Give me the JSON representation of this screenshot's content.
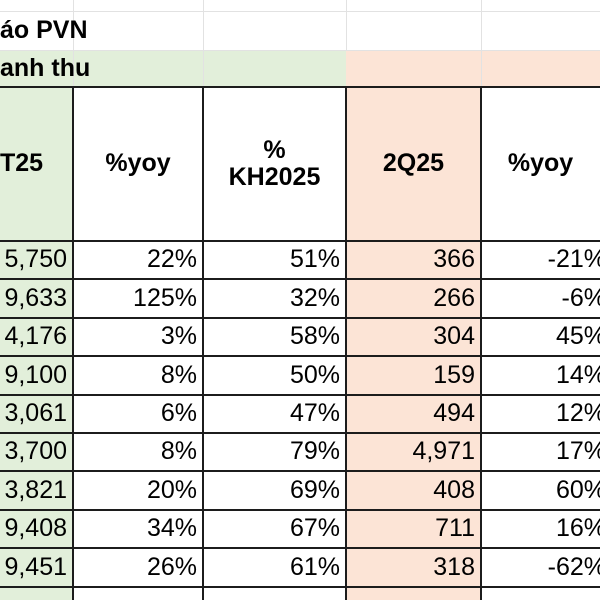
{
  "sheet": {
    "title": "áo PVN",
    "section_label": "anh thu",
    "headers": [
      "T25",
      "%yoy",
      "%\nKH2025",
      "2Q25",
      "%yoy"
    ],
    "rows": [
      [
        "5,750",
        "22%",
        "51%",
        "366",
        "-21%"
      ],
      [
        "9,633",
        "125%",
        "32%",
        "266",
        "-6%"
      ],
      [
        "4,176",
        "3%",
        "58%",
        "304",
        "45%"
      ],
      [
        "9,100",
        "8%",
        "50%",
        "159",
        "14%"
      ],
      [
        "3,061",
        "6%",
        "47%",
        "494",
        "12%"
      ],
      [
        "3,700",
        "8%",
        "79%",
        "4,971",
        "17%"
      ],
      [
        "3,821",
        "20%",
        "69%",
        "408",
        "60%"
      ],
      [
        "9,408",
        "34%",
        "67%",
        "711",
        "16%"
      ],
      [
        "9,451",
        "26%",
        "61%",
        "318",
        "-62%"
      ]
    ]
  },
  "colors": {
    "green_fill": "#e2efda",
    "peach_fill": "#fce4d6",
    "border": "#1c1c1c",
    "gridline": "#e2e2e2"
  }
}
